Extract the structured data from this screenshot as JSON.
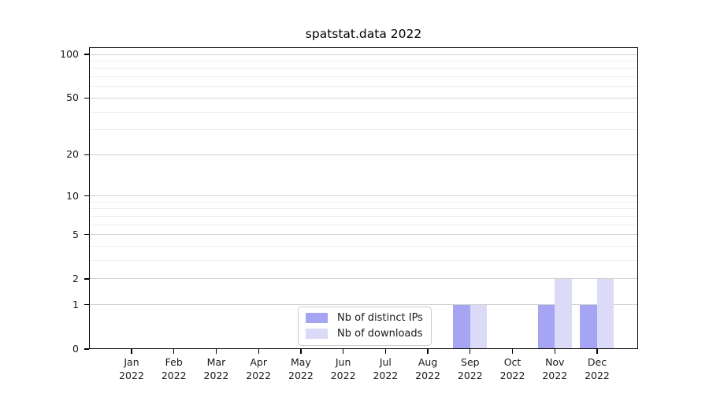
{
  "chart_data": {
    "type": "bar",
    "title": "spatstat.data 2022",
    "categories": [
      "Jan 2022",
      "Feb 2022",
      "Mar 2022",
      "Apr 2022",
      "May 2022",
      "Jun 2022",
      "Jul 2022",
      "Aug 2022",
      "Sep 2022",
      "Oct 2022",
      "Nov 2022",
      "Dec 2022"
    ],
    "category_line1": [
      "Jan",
      "Feb",
      "Mar",
      "Apr",
      "May",
      "Jun",
      "Jul",
      "Aug",
      "Sep",
      "Oct",
      "Nov",
      "Dec"
    ],
    "category_line2": "2022",
    "series": [
      {
        "name": "Nb of distinct IPs",
        "color": "#a5a5f3",
        "values": [
          0,
          0,
          0,
          0,
          0,
          0,
          0,
          0,
          1,
          0,
          1,
          1
        ]
      },
      {
        "name": "Nb of downloads",
        "color": "#dbdbf8",
        "values": [
          0,
          0,
          0,
          0,
          0,
          0,
          0,
          0,
          1,
          0,
          2,
          2
        ]
      }
    ],
    "xlabel": "",
    "ylabel": "",
    "yscale": "log1p",
    "ylim": [
      0,
      100
    ],
    "y_ticks": [
      0,
      1,
      2,
      5,
      10,
      20,
      50,
      100
    ],
    "y_minor_grid": [
      3,
      4,
      6,
      7,
      8,
      9,
      30,
      40,
      60,
      70,
      80,
      90
    ],
    "grid": "horizontal",
    "legend_position": "bottom-center-inside"
  }
}
